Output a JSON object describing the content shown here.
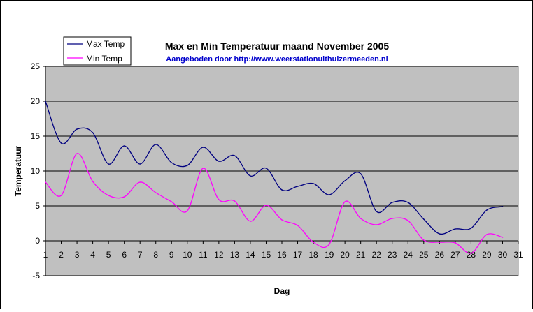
{
  "chart_data": {
    "type": "line",
    "title": "Max en Min Temperatuur maand November 2005",
    "subtitle": "Aangeboden door http://www.weerstationuithuizermeeden.nl",
    "xlabel": "Dag",
    "ylabel": "Temperatuur",
    "ylim": [
      -5,
      25
    ],
    "xlim": [
      1,
      31
    ],
    "yticks": [
      "-5",
      "0",
      "5",
      "10",
      "15",
      "20",
      "25"
    ],
    "xticks": [
      "1",
      "2",
      "3",
      "4",
      "5",
      "6",
      "7",
      "8",
      "9",
      "10",
      "11",
      "12",
      "13",
      "14",
      "15",
      "16",
      "17",
      "18",
      "19",
      "20",
      "21",
      "22",
      "23",
      "24",
      "25",
      "26",
      "27",
      "28",
      "29",
      "30",
      "31"
    ],
    "grid": true,
    "legend_position": "top-left",
    "colors": {
      "plot_background": "#c0c0c0",
      "max": "#000080",
      "min": "#ff00ff"
    },
    "x": [
      1,
      2,
      3,
      4,
      5,
      6,
      7,
      8,
      9,
      10,
      11,
      12,
      13,
      14,
      15,
      16,
      17,
      18,
      19,
      20,
      21,
      22,
      23,
      24,
      25,
      26,
      27,
      28,
      29,
      30
    ],
    "series": [
      {
        "name": "Max Temp",
        "values": [
          20.0,
          14.0,
          16.0,
          15.5,
          11.0,
          13.6,
          11.0,
          13.8,
          11.2,
          10.8,
          13.4,
          11.4,
          12.2,
          9.3,
          10.4,
          7.3,
          7.8,
          8.2,
          6.6,
          8.6,
          9.6,
          4.2,
          5.5,
          5.5,
          3.1,
          1.0,
          1.7,
          1.8,
          4.4,
          4.9
        ]
      },
      {
        "name": "Min Temp",
        "values": [
          8.4,
          6.5,
          12.5,
          8.5,
          6.5,
          6.3,
          8.4,
          6.9,
          5.6,
          4.3,
          10.4,
          5.9,
          5.7,
          2.8,
          5.1,
          3.0,
          2.2,
          -0.2,
          -0.5,
          5.6,
          3.2,
          2.3,
          3.2,
          2.9,
          0.1,
          -0.2,
          -0.3,
          -1.8,
          0.9,
          0.5
        ]
      }
    ]
  }
}
